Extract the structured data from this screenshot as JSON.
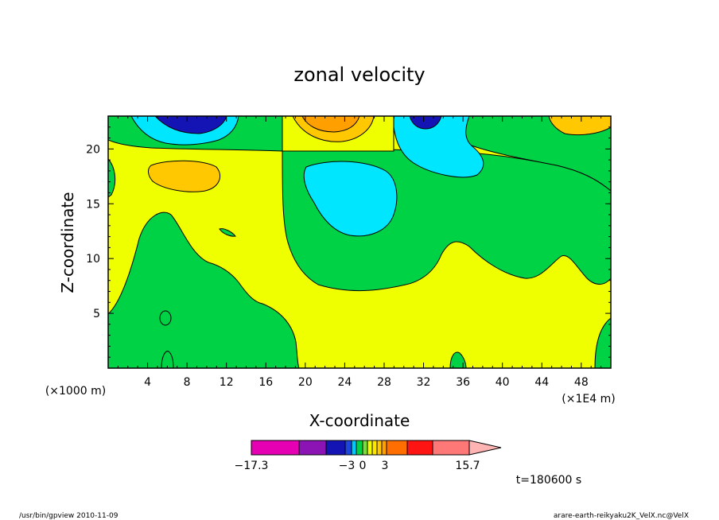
{
  "chart_data": {
    "type": "heatmap",
    "title": "zonal velocity",
    "xlabel": "X-coordinate",
    "ylabel": "Z-coordinate",
    "x_unit_label": "(×1E4 m)",
    "y_unit_label": "(×1000 m)",
    "xlim": [
      0,
      51
    ],
    "ylim": [
      0,
      23
    ],
    "x_ticks": [
      4,
      8,
      12,
      16,
      20,
      24,
      28,
      32,
      36,
      40,
      44,
      48
    ],
    "y_ticks": [
      5,
      10,
      15,
      20
    ],
    "colorbar": {
      "ticks": [
        "−17.3",
        "−3",
        "0",
        "3",
        "15.7"
      ],
      "colors": [
        "#e600b4",
        "#8c14b4",
        "#1414b4",
        "#1e46dc",
        "#00c8ff",
        "#00d246",
        "#78dc3c",
        "#f0ff00",
        "#ffe600",
        "#ffc800",
        "#ffa000",
        "#ff6e00",
        "#ff1414",
        "#ff7878",
        "#ffb4b4"
      ],
      "extend": "max"
    },
    "time_label": "t=180600 s",
    "grid": false
  },
  "footer": {
    "left": "/usr/bin/gpview   2010-11-09",
    "right": "arare-earth-reikyaku2K_VelX.nc@VelX"
  }
}
